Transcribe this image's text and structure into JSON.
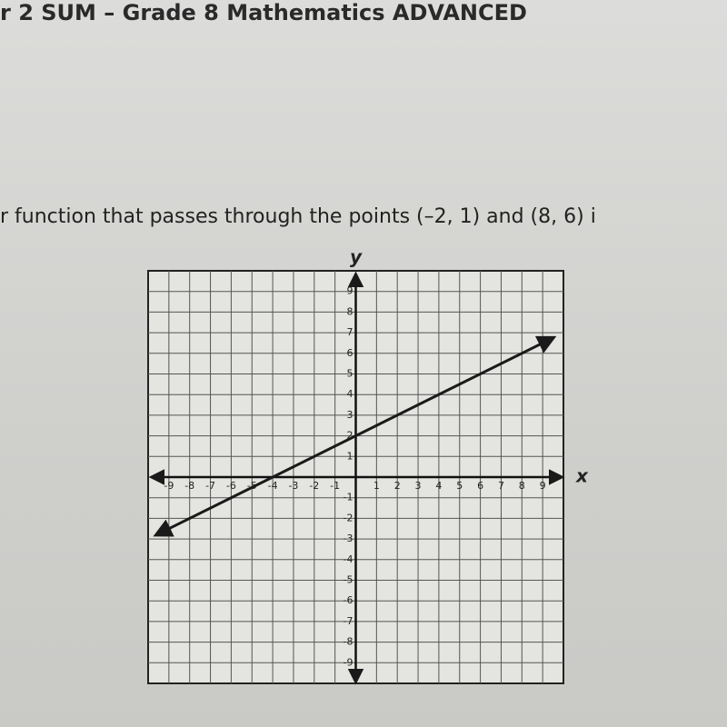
{
  "header": {
    "title": "r 2 SUM – Grade 8 Mathematics ADVANCED"
  },
  "question": "r function that passes through the points (–2, 1) and (8, 6) i",
  "graph": {
    "x_label": "x",
    "y_label": "y",
    "xlim": [
      -10,
      10
    ],
    "ylim": [
      -10,
      10
    ],
    "xticks": [
      -9,
      -8,
      -7,
      -6,
      -5,
      -4,
      -3,
      -2,
      -1,
      1,
      2,
      3,
      4,
      5,
      6,
      7,
      8,
      9
    ],
    "yticks": [
      -9,
      -8,
      -7,
      -6,
      -5,
      -4,
      -3,
      -2,
      -1,
      1,
      2,
      3,
      4,
      5,
      6,
      7,
      8,
      9
    ],
    "line": {
      "x": [
        -9.6,
        9.5
      ],
      "y": [
        -2.8,
        6.75
      ],
      "color": "#1a1a1a"
    }
  }
}
